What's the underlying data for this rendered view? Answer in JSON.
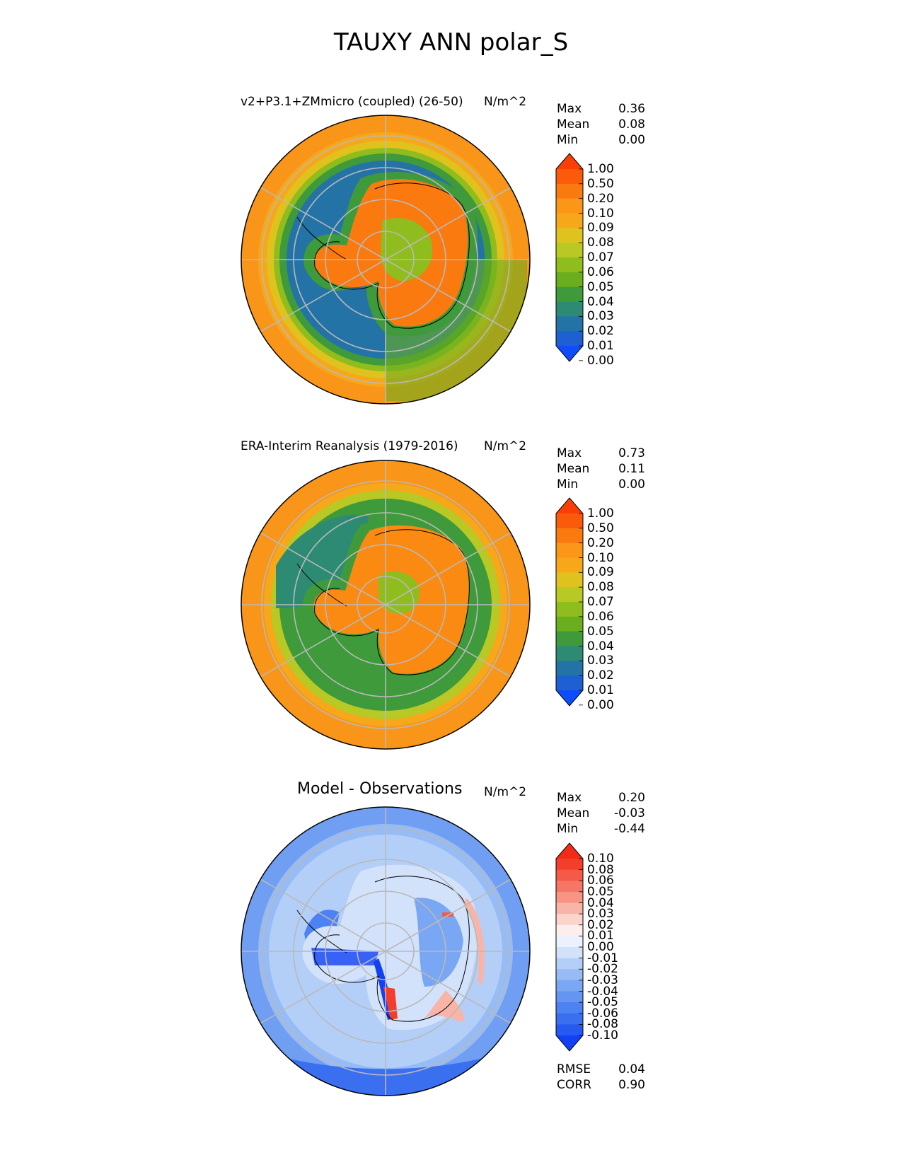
{
  "figure": {
    "title": "TAUXY ANN polar_S"
  },
  "colors": {
    "seq": [
      "#0f4dfa",
      "#1e60d2",
      "#2473a6",
      "#2d8b73",
      "#3e9a3a",
      "#6aae1e",
      "#8fbd1e",
      "#b8c824",
      "#e0c21e",
      "#f6a81a",
      "#fb9618",
      "#fa7a10",
      "#fb5a0a",
      "#f93e06"
    ],
    "div": [
      "#1241f5",
      "#2659f0",
      "#3a6ff0",
      "#4d82f2",
      "#6495f2",
      "#7aa7f3",
      "#96bbf5",
      "#b3cff8",
      "#d3e2fb",
      "#ecf2fd",
      "#fbeeec",
      "#fbd4cc",
      "#f9b4a8",
      "#f89484",
      "#f77566",
      "#f55a48",
      "#f43e2c",
      "#f42a18"
    ]
  },
  "panels": [
    {
      "id": "test",
      "title": "v2+P3.1+ZMmicro (coupled) (26-50)",
      "units": "N/m^2",
      "stats": [
        {
          "label": "Max",
          "value": "0.36"
        },
        {
          "label": "Mean",
          "value": "0.08"
        },
        {
          "label": "Min",
          "value": "0.00"
        }
      ],
      "colorbar_ticks": [
        "1.00",
        "0.50",
        "0.20",
        "0.10",
        "0.09",
        "0.08",
        "0.07",
        "0.06",
        "0.05",
        "0.04",
        "0.03",
        "0.02",
        "0.01",
        "0.00"
      ]
    },
    {
      "id": "ref",
      "title": "ERA-Interim Reanalysis (1979-2016)",
      "units": "N/m^2",
      "stats": [
        {
          "label": "Max",
          "value": "0.73"
        },
        {
          "label": "Mean",
          "value": "0.11"
        },
        {
          "label": "Min",
          "value": "0.00"
        }
      ],
      "colorbar_ticks": [
        "1.00",
        "0.50",
        "0.20",
        "0.10",
        "0.09",
        "0.08",
        "0.07",
        "0.06",
        "0.05",
        "0.04",
        "0.03",
        "0.02",
        "0.01",
        "0.00"
      ]
    },
    {
      "id": "diff",
      "title": "Model - Observations",
      "units": "N/m^2",
      "stats": [
        {
          "label": "Max",
          "value": "0.20"
        },
        {
          "label": "Mean",
          "value": "-0.03"
        },
        {
          "label": "Min",
          "value": "-0.44"
        }
      ],
      "colorbar_ticks": [
        "0.10",
        "0.08",
        "0.06",
        "0.05",
        "0.04",
        "0.03",
        "0.02",
        "0.01",
        "0.00",
        "-0.01",
        "-0.02",
        "-0.03",
        "-0.04",
        "-0.05",
        "-0.06",
        "-0.08",
        "-0.10"
      ],
      "metrics": [
        {
          "label": "RMSE",
          "value": "0.04"
        },
        {
          "label": "CORR",
          "value": "0.90"
        }
      ]
    }
  ],
  "chart_data": {
    "type": "heatmap",
    "projection": "south polar stereographic",
    "variable": "TAUXY",
    "season": "ANN",
    "region": "polar_S",
    "title": "TAUXY ANN polar_S",
    "panels": [
      {
        "title": "v2+P3.1+ZMmicro (coupled) (26-50)",
        "units": "N/m^2",
        "max": 0.36,
        "mean": 0.08,
        "min": 0.0,
        "levels": [
          0.0,
          0.01,
          0.02,
          0.03,
          0.04,
          0.05,
          0.06,
          0.07,
          0.08,
          0.09,
          0.1,
          0.2,
          0.5,
          1.0
        ]
      },
      {
        "title": "ERA-Interim Reanalysis (1979-2016)",
        "units": "N/m^2",
        "max": 0.73,
        "mean": 0.11,
        "min": 0.0,
        "levels": [
          0.0,
          0.01,
          0.02,
          0.03,
          0.04,
          0.05,
          0.06,
          0.07,
          0.08,
          0.09,
          0.1,
          0.2,
          0.5,
          1.0
        ]
      },
      {
        "title": "Model - Observations",
        "units": "N/m^2",
        "max": 0.2,
        "mean": -0.03,
        "min": -0.44,
        "levels": [
          -0.1,
          -0.08,
          -0.06,
          -0.05,
          -0.04,
          -0.03,
          -0.02,
          -0.01,
          0.0,
          0.01,
          0.02,
          0.03,
          0.04,
          0.05,
          0.06,
          0.08,
          0.1
        ],
        "rmse": 0.04,
        "corr": 0.9
      }
    ]
  }
}
